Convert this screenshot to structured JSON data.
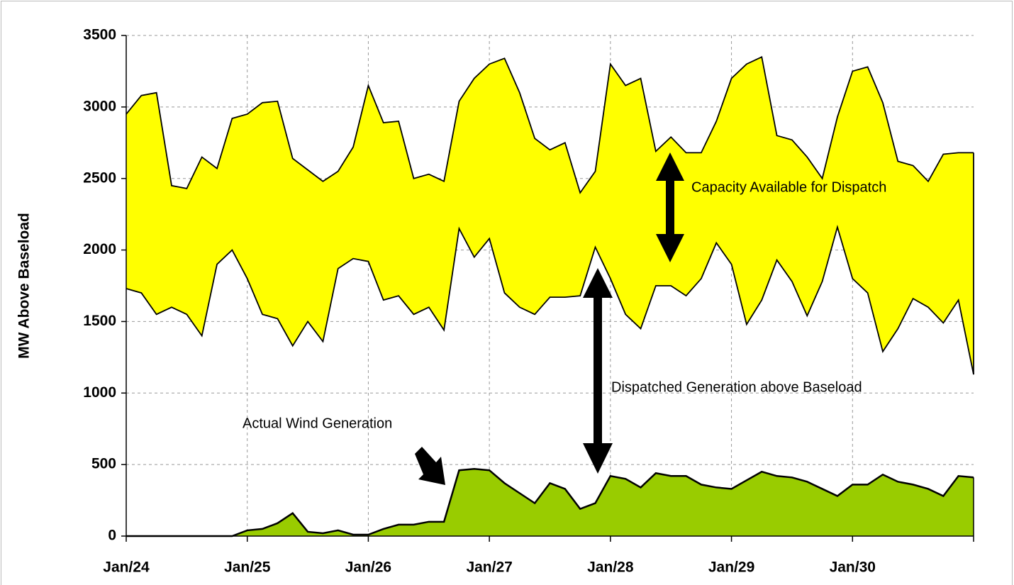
{
  "chart_data": {
    "type": "area",
    "y_label": "MW Above Baseload",
    "annotations": [
      "Capacity Available for Dispatch",
      "Dispatched Generation above Baseload",
      "Actual Wind Generation"
    ],
    "x": [
      0,
      0.125,
      0.25,
      0.375,
      0.5,
      0.625,
      0.75,
      0.875,
      1,
      1.125,
      1.25,
      1.375,
      1.5,
      1.625,
      1.75,
      1.875,
      2,
      2.125,
      2.25,
      2.375,
      2.5,
      2.625,
      2.75,
      2.875,
      3,
      3.125,
      3.25,
      3.375,
      3.5,
      3.625,
      3.75,
      3.875,
      4,
      4.125,
      4.25,
      4.375,
      4.5,
      4.625,
      4.75,
      4.875,
      5,
      5.125,
      5.25,
      5.375,
      5.5,
      5.625,
      5.75,
      5.875,
      6,
      6.125,
      6.25,
      6.375,
      6.5,
      6.625,
      6.75,
      6.875,
      7
    ],
    "series": [
      {
        "name": "Dispatched Generation above Baseload",
        "color": "#ffff00",
        "stack": "lower",
        "values": [
          1730,
          1700,
          1550,
          1600,
          1550,
          1400,
          1900,
          2000,
          1800,
          1550,
          1520,
          1330,
          1500,
          1360,
          1870,
          1940,
          1920,
          1650,
          1680,
          1550,
          1600,
          1440,
          2150,
          1950,
          2080,
          1700,
          1600,
          1550,
          1670,
          1670,
          1680,
          2020,
          1800,
          1550,
          1450,
          1750,
          1750,
          1680,
          1800,
          2050,
          1900,
          1480,
          1650,
          1930,
          1780,
          1540,
          1780,
          2160,
          1800,
          1700,
          1290,
          1450,
          1660,
          1600,
          1490,
          1650,
          1130
        ]
      },
      {
        "name": "Capacity Available for Dispatch",
        "color": "#ffff00",
        "stack": "upper",
        "values": [
          1220,
          1380,
          1550,
          850,
          880,
          1250,
          670,
          920,
          1150,
          1480,
          1520,
          1310,
          1060,
          1120,
          680,
          780,
          1230,
          1240,
          1220,
          950,
          930,
          1040,
          890,
          1250,
          1220,
          1640,
          1500,
          1230,
          1030,
          1080,
          720,
          530,
          1500,
          1600,
          1750,
          940,
          1040,
          1000,
          880,
          850,
          1300,
          1820,
          1700,
          870,
          990,
          1110,
          720,
          770,
          1450,
          1580,
          1740,
          1170,
          930,
          880,
          1180,
          1030,
          1550
        ]
      },
      {
        "name": "Actual Wind Generation",
        "color": "#99cc00",
        "values": [
          0,
          0,
          0,
          0,
          0,
          0,
          0,
          0,
          40,
          50,
          90,
          160,
          30,
          20,
          40,
          10,
          10,
          50,
          80,
          80,
          100,
          100,
          460,
          470,
          460,
          370,
          300,
          230,
          370,
          330,
          190,
          230,
          420,
          400,
          340,
          440,
          420,
          420,
          360,
          340,
          330,
          390,
          450,
          420,
          410,
          380,
          330,
          280,
          360,
          360,
          430,
          380,
          360,
          330,
          280,
          420,
          410
        ]
      }
    ],
    "xlim": [
      0,
      7
    ],
    "xticks": [
      {
        "value": 0,
        "label": "Jan/24"
      },
      {
        "value": 1,
        "label": "Jan/25"
      },
      {
        "value": 2,
        "label": "Jan/26"
      },
      {
        "value": 3,
        "label": "Jan/27"
      },
      {
        "value": 4,
        "label": "Jan/28"
      },
      {
        "value": 5,
        "label": "Jan/29"
      },
      {
        "value": 6,
        "label": "Jan/30"
      }
    ],
    "ylim": [
      0,
      3500
    ],
    "yticks": [
      0,
      500,
      1000,
      1500,
      2000,
      2500,
      3000,
      3500
    ],
    "grid": true
  }
}
